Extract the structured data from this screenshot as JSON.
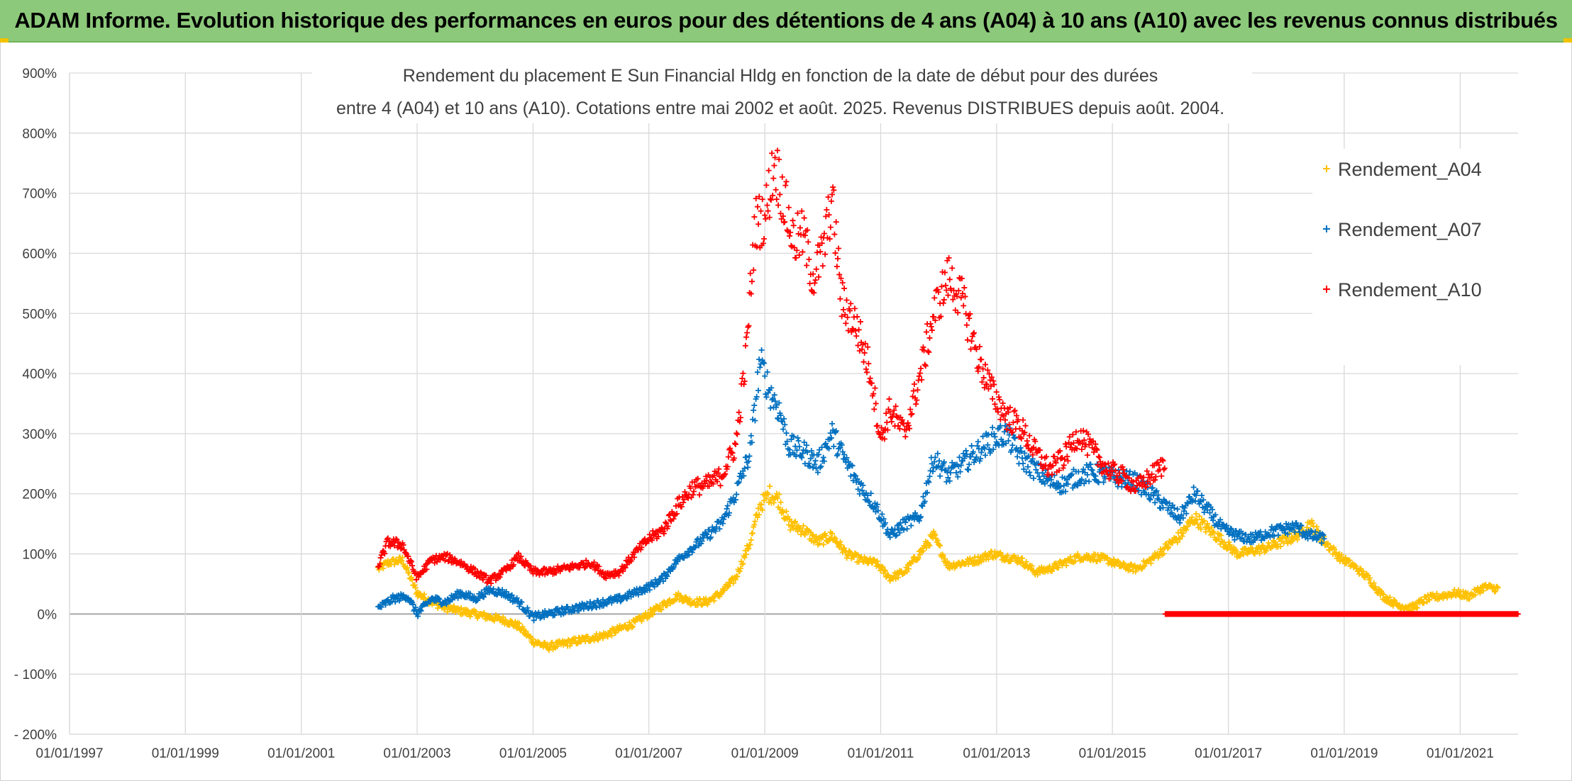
{
  "banner": {
    "title": "ADAM Informe. Evolution historique des performances en euros pour des détentions de 4 ans (A04) à 10 ans (A10) avec les revenus connus distribués"
  },
  "chart_data": {
    "type": "scatter",
    "title_line1": "Rendement du placement E Sun Financial Hldg  en fonction de la date de début pour des durées",
    "title_line2": "entre 4 (A04) et 10 ans (A10). Cotations entre mai 2002 et août. 2025. Revenus DISTRIBUES depuis août. 2004.",
    "xlabel": "",
    "ylabel": "",
    "x_ticks": [
      "01/01/1997",
      "01/01/1999",
      "01/01/2001",
      "01/01/2003",
      "01/01/2005",
      "01/01/2007",
      "01/01/2009",
      "01/01/2011",
      "01/01/2013",
      "01/01/2015",
      "01/01/2017",
      "01/01/2019",
      "01/01/2021"
    ],
    "y_ticks": [
      "900%",
      "800%",
      "700%",
      "600%",
      "500%",
      "400%",
      "300%",
      "200%",
      "100%",
      "0%",
      "- 100%",
      "- 200%"
    ],
    "xlim": [
      "1997-01-01",
      "2022-01-01"
    ],
    "ylim": [
      -200,
      900
    ],
    "grid": true,
    "legend_position": "top-right",
    "marker": "+",
    "series": [
      {
        "name": "Rendement_A04",
        "color": "#ffc000",
        "points": [
          [
            "2002-05-01",
            75
          ],
          [
            "2002-07-01",
            85
          ],
          [
            "2002-10-01",
            90
          ],
          [
            "2003-01-01",
            35
          ],
          [
            "2003-04-01",
            20
          ],
          [
            "2003-07-01",
            10
          ],
          [
            "2003-10-01",
            5
          ],
          [
            "2004-01-01",
            0
          ],
          [
            "2004-04-01",
            -5
          ],
          [
            "2004-07-01",
            -10
          ],
          [
            "2004-10-01",
            -20
          ],
          [
            "2005-01-01",
            -45
          ],
          [
            "2005-04-01",
            -55
          ],
          [
            "2005-07-01",
            -50
          ],
          [
            "2005-10-01",
            -45
          ],
          [
            "2006-01-01",
            -40
          ],
          [
            "2006-04-01",
            -35
          ],
          [
            "2006-07-01",
            -25
          ],
          [
            "2006-10-01",
            -15
          ],
          [
            "2007-01-01",
            0
          ],
          [
            "2007-04-01",
            15
          ],
          [
            "2007-07-01",
            30
          ],
          [
            "2007-10-01",
            20
          ],
          [
            "2008-01-01",
            20
          ],
          [
            "2008-04-01",
            35
          ],
          [
            "2008-07-01",
            60
          ],
          [
            "2008-10-01",
            120
          ],
          [
            "2008-12-01",
            180
          ],
          [
            "2009-02-01",
            200
          ],
          [
            "2009-04-01",
            190
          ],
          [
            "2009-06-01",
            150
          ],
          [
            "2009-09-01",
            140
          ],
          [
            "2009-12-01",
            120
          ],
          [
            "2010-03-01",
            130
          ],
          [
            "2010-06-01",
            100
          ],
          [
            "2010-09-01",
            90
          ],
          [
            "2010-12-01",
            85
          ],
          [
            "2011-03-01",
            60
          ],
          [
            "2011-06-01",
            70
          ],
          [
            "2011-09-01",
            100
          ],
          [
            "2011-12-01",
            130
          ],
          [
            "2012-03-01",
            80
          ],
          [
            "2012-06-01",
            85
          ],
          [
            "2012-09-01",
            90
          ],
          [
            "2012-12-01",
            100
          ],
          [
            "2013-03-01",
            95
          ],
          [
            "2013-06-01",
            90
          ],
          [
            "2013-09-01",
            70
          ],
          [
            "2013-12-01",
            75
          ],
          [
            "2014-03-01",
            85
          ],
          [
            "2014-06-01",
            95
          ],
          [
            "2014-09-01",
            95
          ],
          [
            "2014-12-01",
            90
          ],
          [
            "2015-03-01",
            80
          ],
          [
            "2015-06-01",
            75
          ],
          [
            "2015-09-01",
            90
          ],
          [
            "2015-12-01",
            110
          ],
          [
            "2016-03-01",
            130
          ],
          [
            "2016-06-01",
            160
          ],
          [
            "2016-09-01",
            140
          ],
          [
            "2016-12-01",
            120
          ],
          [
            "2017-03-01",
            100
          ],
          [
            "2017-06-01",
            105
          ],
          [
            "2017-09-01",
            110
          ],
          [
            "2017-12-01",
            120
          ],
          [
            "2018-03-01",
            130
          ],
          [
            "2018-06-01",
            150
          ],
          [
            "2018-09-01",
            120
          ],
          [
            "2018-12-01",
            95
          ],
          [
            "2019-03-01",
            80
          ],
          [
            "2019-06-01",
            60
          ],
          [
            "2019-09-01",
            30
          ],
          [
            "2019-12-01",
            15
          ],
          [
            "2020-03-01",
            10
          ],
          [
            "2020-06-01",
            25
          ],
          [
            "2020-09-01",
            30
          ],
          [
            "2020-12-01",
            35
          ],
          [
            "2021-03-01",
            30
          ],
          [
            "2021-06-01",
            45
          ],
          [
            "2021-09-01",
            42
          ]
        ]
      },
      {
        "name": "Rendement_A07",
        "color": "#0070c0",
        "points": [
          [
            "2002-05-01",
            10
          ],
          [
            "2002-08-01",
            25
          ],
          [
            "2002-11-01",
            30
          ],
          [
            "2003-01-01",
            0
          ],
          [
            "2003-04-01",
            25
          ],
          [
            "2003-07-01",
            20
          ],
          [
            "2003-10-01",
            35
          ],
          [
            "2004-01-01",
            25
          ],
          [
            "2004-04-01",
            40
          ],
          [
            "2004-07-01",
            35
          ],
          [
            "2004-10-01",
            20
          ],
          [
            "2005-01-01",
            -5
          ],
          [
            "2005-04-01",
            0
          ],
          [
            "2005-07-01",
            5
          ],
          [
            "2005-10-01",
            10
          ],
          [
            "2006-01-01",
            15
          ],
          [
            "2006-04-01",
            20
          ],
          [
            "2006-07-01",
            25
          ],
          [
            "2006-10-01",
            35
          ],
          [
            "2007-01-01",
            45
          ],
          [
            "2007-04-01",
            60
          ],
          [
            "2007-07-01",
            90
          ],
          [
            "2007-10-01",
            110
          ],
          [
            "2008-01-01",
            130
          ],
          [
            "2008-04-01",
            150
          ],
          [
            "2008-07-01",
            200
          ],
          [
            "2008-10-01",
            270
          ],
          [
            "2008-12-01",
            420
          ],
          [
            "2009-02-01",
            370
          ],
          [
            "2009-04-01",
            340
          ],
          [
            "2009-06-01",
            280
          ],
          [
            "2009-09-01",
            270
          ],
          [
            "2009-12-01",
            250
          ],
          [
            "2010-03-01",
            300
          ],
          [
            "2010-06-01",
            250
          ],
          [
            "2010-09-01",
            210
          ],
          [
            "2010-12-01",
            180
          ],
          [
            "2011-03-01",
            130
          ],
          [
            "2011-06-01",
            150
          ],
          [
            "2011-09-01",
            160
          ],
          [
            "2011-12-01",
            260
          ],
          [
            "2012-03-01",
            230
          ],
          [
            "2012-06-01",
            250
          ],
          [
            "2012-09-01",
            270
          ],
          [
            "2012-12-01",
            290
          ],
          [
            "2013-03-01",
            300
          ],
          [
            "2013-06-01",
            260
          ],
          [
            "2013-09-01",
            240
          ],
          [
            "2013-12-01",
            220
          ],
          [
            "2014-03-01",
            215
          ],
          [
            "2014-06-01",
            230
          ],
          [
            "2014-09-01",
            235
          ],
          [
            "2014-12-01",
            230
          ],
          [
            "2015-03-01",
            225
          ],
          [
            "2015-06-01",
            220
          ],
          [
            "2015-09-01",
            200
          ],
          [
            "2015-12-01",
            180
          ],
          [
            "2016-03-01",
            160
          ],
          [
            "2016-06-01",
            200
          ],
          [
            "2016-09-01",
            170
          ],
          [
            "2016-12-01",
            140
          ],
          [
            "2017-03-01",
            130
          ],
          [
            "2017-06-01",
            125
          ],
          [
            "2017-09-01",
            135
          ],
          [
            "2017-12-01",
            140
          ],
          [
            "2018-03-01",
            145
          ],
          [
            "2018-06-01",
            130
          ],
          [
            "2018-09-01",
            125
          ]
        ]
      },
      {
        "name": "Rendement_A10",
        "color": "#ff0000",
        "points": [
          [
            "2002-05-01",
            80
          ],
          [
            "2002-07-01",
            120
          ],
          [
            "2002-10-01",
            115
          ],
          [
            "2003-01-01",
            60
          ],
          [
            "2003-04-01",
            90
          ],
          [
            "2003-07-01",
            95
          ],
          [
            "2003-10-01",
            85
          ],
          [
            "2004-01-01",
            70
          ],
          [
            "2004-04-01",
            55
          ],
          [
            "2004-07-01",
            70
          ],
          [
            "2004-10-01",
            95
          ],
          [
            "2005-01-01",
            70
          ],
          [
            "2005-04-01",
            70
          ],
          [
            "2005-07-01",
            75
          ],
          [
            "2005-10-01",
            80
          ],
          [
            "2006-01-01",
            85
          ],
          [
            "2006-04-01",
            65
          ],
          [
            "2006-07-01",
            70
          ],
          [
            "2006-10-01",
            100
          ],
          [
            "2007-01-01",
            125
          ],
          [
            "2007-04-01",
            140
          ],
          [
            "2007-07-01",
            180
          ],
          [
            "2007-10-01",
            210
          ],
          [
            "2008-01-01",
            215
          ],
          [
            "2008-04-01",
            230
          ],
          [
            "2008-07-01",
            280
          ],
          [
            "2008-09-01",
            420
          ],
          [
            "2008-11-01",
            650
          ],
          [
            "2009-01-01",
            660
          ],
          [
            "2009-03-01",
            750
          ],
          [
            "2009-05-01",
            690
          ],
          [
            "2009-07-01",
            620
          ],
          [
            "2009-09-01",
            630
          ],
          [
            "2009-11-01",
            560
          ],
          [
            "2010-01-01",
            600
          ],
          [
            "2010-03-01",
            690
          ],
          [
            "2010-05-01",
            520
          ],
          [
            "2010-08-01",
            480
          ],
          [
            "2010-11-01",
            400
          ],
          [
            "2011-01-01",
            290
          ],
          [
            "2011-03-01",
            340
          ],
          [
            "2011-06-01",
            300
          ],
          [
            "2011-09-01",
            390
          ],
          [
            "2011-12-01",
            500
          ],
          [
            "2012-03-01",
            560
          ],
          [
            "2012-06-01",
            520
          ],
          [
            "2012-09-01",
            430
          ],
          [
            "2012-12-01",
            370
          ],
          [
            "2013-03-01",
            330
          ],
          [
            "2013-06-01",
            310
          ],
          [
            "2013-09-01",
            270
          ],
          [
            "2013-12-01",
            240
          ],
          [
            "2014-03-01",
            260
          ],
          [
            "2014-06-01",
            300
          ],
          [
            "2014-09-01",
            270
          ],
          [
            "2014-12-01",
            240
          ],
          [
            "2015-03-01",
            230
          ],
          [
            "2015-06-01",
            210
          ],
          [
            "2015-09-01",
            230
          ],
          [
            "2015-12-01",
            250
          ]
        ],
        "flat_zero_from": "2015-12-01",
        "flat_zero_to": "2021-12-31"
      }
    ]
  }
}
